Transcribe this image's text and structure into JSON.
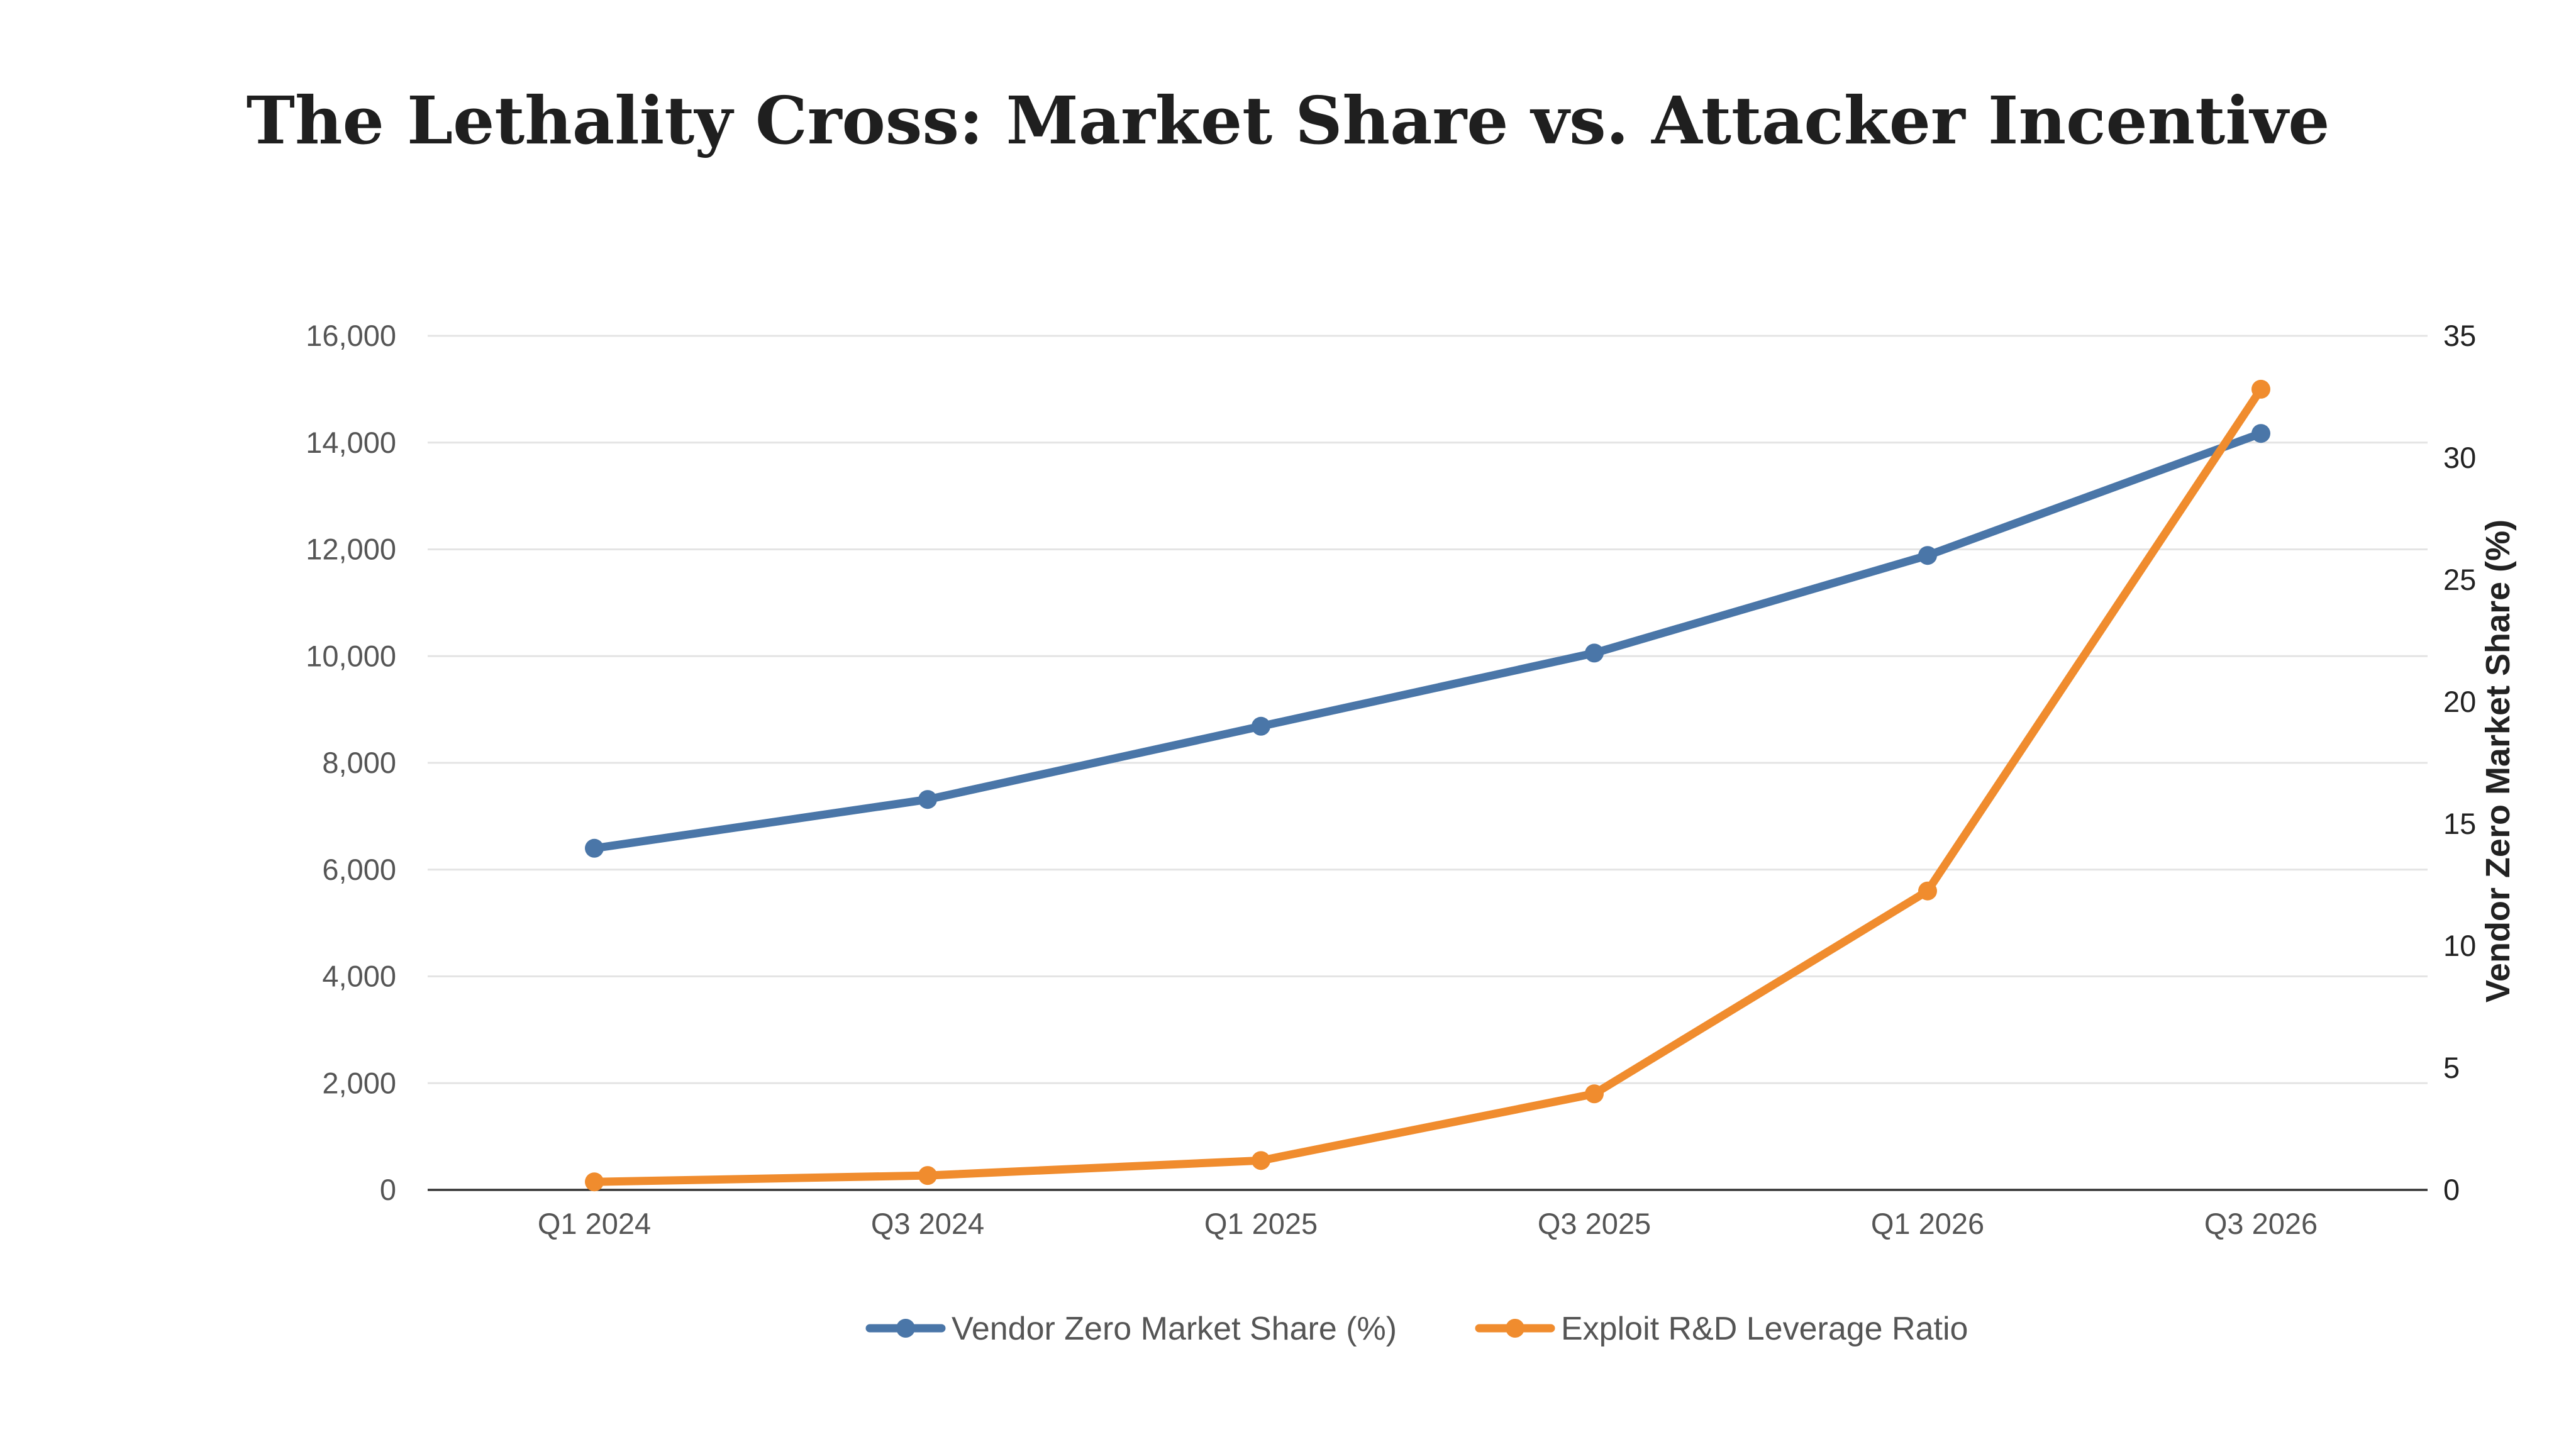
{
  "chart_data": {
    "type": "line",
    "title": "The Lethality Cross: Market Share vs. Attacker Incentive",
    "categories": [
      "Q1 2024",
      "Q3 2024",
      "Q1 2025",
      "Q3 2025",
      "Q1 2026",
      "Q3 2026"
    ],
    "y_left": {
      "label": "",
      "lim": [
        0,
        16000
      ],
      "ticks": [
        0,
        2000,
        4000,
        6000,
        8000,
        10000,
        12000,
        14000,
        16000
      ],
      "tick_labels": [
        "0",
        "2,000",
        "4,000",
        "6,000",
        "8,000",
        "10,000",
        "12,000",
        "14,000",
        "16,000"
      ]
    },
    "y_right": {
      "label": "Vendor Zero Market Share (%)",
      "lim": [
        0,
        35
      ],
      "ticks": [
        0,
        5,
        10,
        15,
        20,
        25,
        30,
        35
      ],
      "tick_labels": [
        "0",
        "5",
        "10",
        "15",
        "20",
        "25",
        "30",
        "35"
      ]
    },
    "grid": true,
    "legend_position": "bottom-center",
    "series": [
      {
        "name": "Vendor Zero Market Share (%)",
        "axis": "right",
        "color": "#4a76a8",
        "values": [
          14,
          16,
          19,
          22,
          26,
          31
        ]
      },
      {
        "name": "Exploit R&D Leverage Ratio",
        "axis": "left",
        "color": "#f08c2e",
        "values": [
          150,
          270,
          550,
          1800,
          5600,
          15000
        ]
      }
    ]
  }
}
